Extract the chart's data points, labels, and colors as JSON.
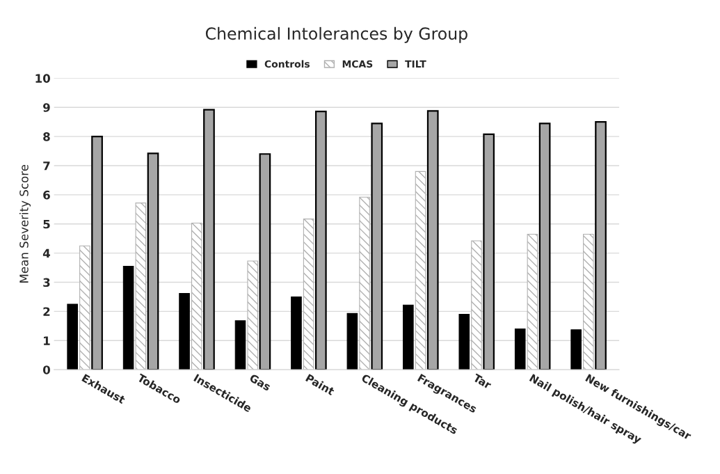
{
  "chart_data": {
    "type": "bar",
    "title": "Chemical Intolerances by Group",
    "ylabel": "Mean Severity Score",
    "categories": [
      "Exhaust",
      "Tobacco",
      "Insecticide",
      "Gas",
      "Paint",
      "Cleaning products",
      "Fragrances",
      "Tar",
      "Nail polish/hair spray",
      "New furnishings/car"
    ],
    "series": [
      {
        "name": "Controls",
        "color": "#000000",
        "values": [
          2.25,
          3.55,
          2.62,
          1.68,
          2.5,
          1.93,
          2.22,
          1.9,
          1.4,
          1.37
        ]
      },
      {
        "name": "MCAS",
        "color": "#b0b0b0",
        "values": [
          4.25,
          5.72,
          5.03,
          3.73,
          5.17,
          5.92,
          6.8,
          4.42,
          4.65,
          4.65
        ]
      },
      {
        "name": "TILT",
        "color": "#a6a6a6",
        "values": [
          8.0,
          7.42,
          8.92,
          7.4,
          8.86,
          8.45,
          8.88,
          8.08,
          8.45,
          8.5
        ]
      }
    ],
    "ylim": [
      0,
      10
    ],
    "yticks": [
      0,
      1,
      2,
      3,
      4,
      5,
      6,
      7,
      8,
      9,
      10
    ],
    "grid": "y",
    "legend": "top"
  }
}
